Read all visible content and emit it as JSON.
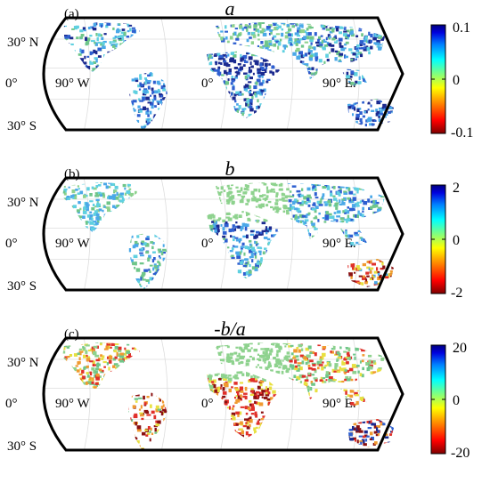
{
  "figure": {
    "panels": [
      {
        "tag": "(a)",
        "title": "a",
        "lat_labels": {
          "north": "30",
          "north_dir": "N",
          "equator": "0",
          "south": "30",
          "south_dir": "S"
        },
        "lon_labels": {
          "west": "90",
          "west_dir": "W",
          "center": "0",
          "east": "90",
          "east_dir": "E."
        },
        "colorbar": {
          "max": "0.1",
          "mid": "0",
          "min": "-0.1"
        },
        "pattern": "a"
      },
      {
        "tag": "(b)",
        "title": "b",
        "lat_labels": {
          "north": "30",
          "north_dir": "N",
          "equator": "0",
          "south": "30",
          "south_dir": "S"
        },
        "lon_labels": {
          "west": "90",
          "west_dir": "W",
          "center": "0",
          "east": "90",
          "east_dir": "E."
        },
        "colorbar": {
          "max": "2",
          "mid": "0",
          "min": "-2"
        },
        "pattern": "b"
      },
      {
        "tag": "(c)",
        "title": "-b/a",
        "lat_labels": {
          "north": "30",
          "north_dir": "N",
          "equator": "0",
          "south": "30",
          "south_dir": "S"
        },
        "lon_labels": {
          "west": "90",
          "west_dir": "W",
          "center": "0",
          "east": "90",
          "east_dir": "E."
        },
        "colorbar": {
          "max": "20",
          "mid": "0",
          "min": "-20"
        },
        "pattern": "c"
      }
    ],
    "degree_symbol": "°",
    "colormap": [
      "#7f0000",
      "#ff0000",
      "#ff8000",
      "#ffff00",
      "#80ff80",
      "#00ffff",
      "#0080ff",
      "#0000ff",
      "#00007f"
    ]
  }
}
